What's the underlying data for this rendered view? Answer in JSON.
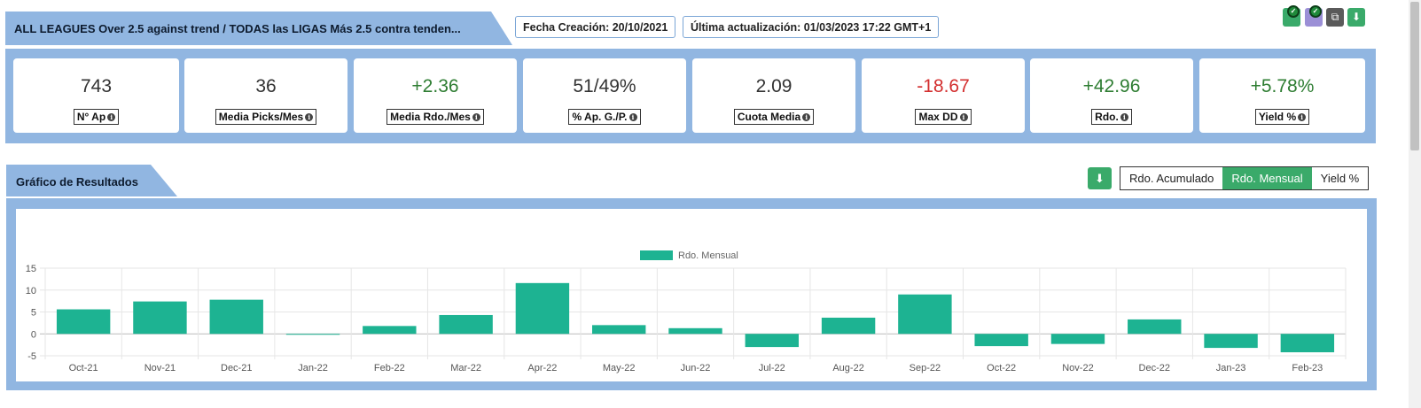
{
  "header": {
    "title": "ALL LEAGUES Over 2.5 against trend / TODAS las LIGAS Más 2.5 contra tenden...",
    "created": "Fecha Creación: 20/10/2021",
    "updated": "Última actualización: 01/03/2023 17:22 GMT+1"
  },
  "toolbar": {
    "icons": [
      "check-icon",
      "check-icon",
      "copy-icon",
      "download-icon"
    ],
    "colors": {
      "green": "#3aaa6a",
      "purple": "#9b8fd6",
      "gray": "#5a5a5a"
    }
  },
  "stats": [
    {
      "value": "743",
      "label": "N° Ap",
      "tone": "neutral"
    },
    {
      "value": "36",
      "label": "Media Picks/Mes",
      "tone": "neutral"
    },
    {
      "value": "+2.36",
      "label": "Media Rdo./Mes",
      "tone": "pos"
    },
    {
      "value": "51/49%",
      "label": "% Ap. G./P.",
      "tone": "neutral"
    },
    {
      "value": "2.09",
      "label": "Cuota Media",
      "tone": "neutral"
    },
    {
      "value": "-18.67",
      "label": "Max DD",
      "tone": "neg"
    },
    {
      "value": "+42.96",
      "label": "Rdo.",
      "tone": "pos"
    },
    {
      "value": "+5.78%",
      "label": "Yield %",
      "tone": "pos"
    }
  ],
  "chart_section": {
    "title": "Gráfico de Resultados",
    "toggles": [
      {
        "label": "Rdo. Acumulado",
        "active": false
      },
      {
        "label": "Rdo. Mensual",
        "active": true
      },
      {
        "label": "Yield %",
        "active": false
      }
    ]
  },
  "chart_data": {
    "type": "bar",
    "categories": [
      "Oct-21",
      "Nov-21",
      "Dec-21",
      "Jan-22",
      "Feb-22",
      "Mar-22",
      "Apr-22",
      "May-22",
      "Jun-22",
      "Jul-22",
      "Aug-22",
      "Sep-22",
      "Oct-22",
      "Nov-22",
      "Dec-22",
      "Jan-23",
      "Feb-23"
    ],
    "series": [
      {
        "name": "Rdo. Mensual",
        "values": [
          5.6,
          7.4,
          7.8,
          0.0,
          1.8,
          4.3,
          11.6,
          2.0,
          1.3,
          -3.0,
          3.7,
          9.0,
          -2.8,
          -2.3,
          3.3,
          -3.2,
          -4.2
        ]
      }
    ],
    "yticks": [
      "15",
      "10",
      "5",
      "0",
      "-5"
    ],
    "ylim": [
      -5,
      15
    ],
    "legend": "top-center",
    "grid": true,
    "bar_color": "#1db392"
  }
}
